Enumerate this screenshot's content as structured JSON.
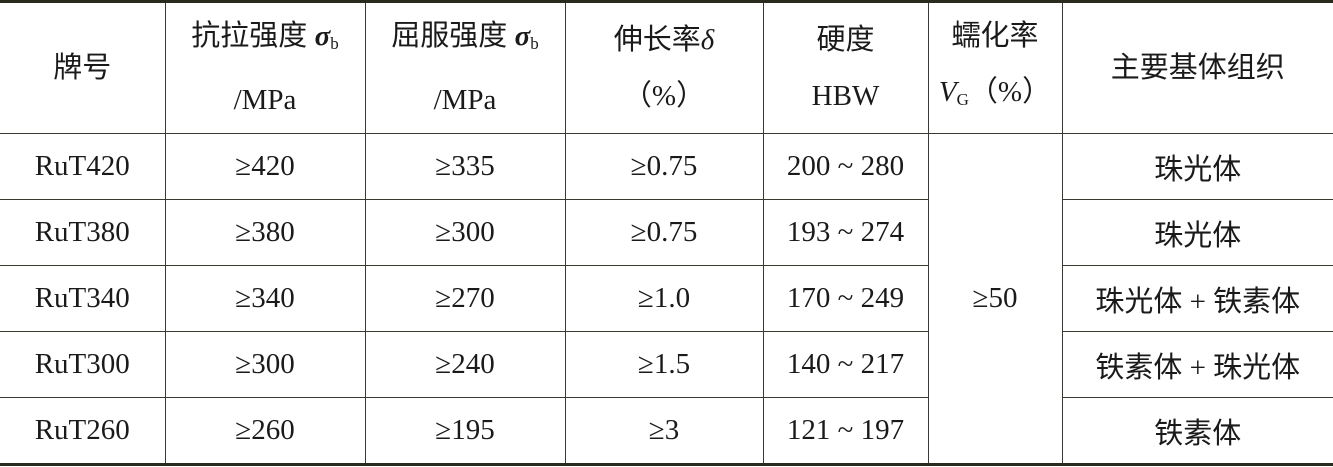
{
  "headers": [
    {
      "line1": "牌号",
      "line2": ""
    },
    {
      "line1": "抗拉强度",
      "symbol": "σ",
      "sub": "b",
      "line2": "/MPa"
    },
    {
      "line1": "屈服强度",
      "symbol": "σ",
      "sub": "b",
      "line2": "/MPa"
    },
    {
      "line1": "伸长率",
      "symbol": "δ",
      "line2": "（%）"
    },
    {
      "line1": "硬度",
      "line2": "HBW"
    },
    {
      "line1": "蠕化率",
      "symbol": "V",
      "sub": "G",
      "line2": "（%）"
    },
    {
      "line1": "主要基体组织",
      "line2": ""
    }
  ],
  "rows": [
    {
      "grade": "RuT420",
      "tensile": "≥420",
      "yield": "≥335",
      "elongation": "≥0.75",
      "hardness": "200 ~ 280",
      "matrix": "珠光体"
    },
    {
      "grade": "RuT380",
      "tensile": "≥380",
      "yield": "≥300",
      "elongation": "≥0.75",
      "hardness": "193 ~ 274",
      "matrix": "珠光体"
    },
    {
      "grade": "RuT340",
      "tensile": "≥340",
      "yield": "≥270",
      "elongation": "≥1.0",
      "hardness": "170 ~ 249",
      "matrix": "珠光体 + 铁素体"
    },
    {
      "grade": "RuT300",
      "tensile": "≥300",
      "yield": "≥240",
      "elongation": "≥1.5",
      "hardness": "140 ~ 217",
      "matrix": "铁素体 + 珠光体"
    },
    {
      "grade": "RuT260",
      "tensile": "≥260",
      "yield": "≥195",
      "elongation": "≥3",
      "hardness": "121 ~ 197",
      "matrix": "铁素体"
    }
  ],
  "vermicularity": "≥50"
}
